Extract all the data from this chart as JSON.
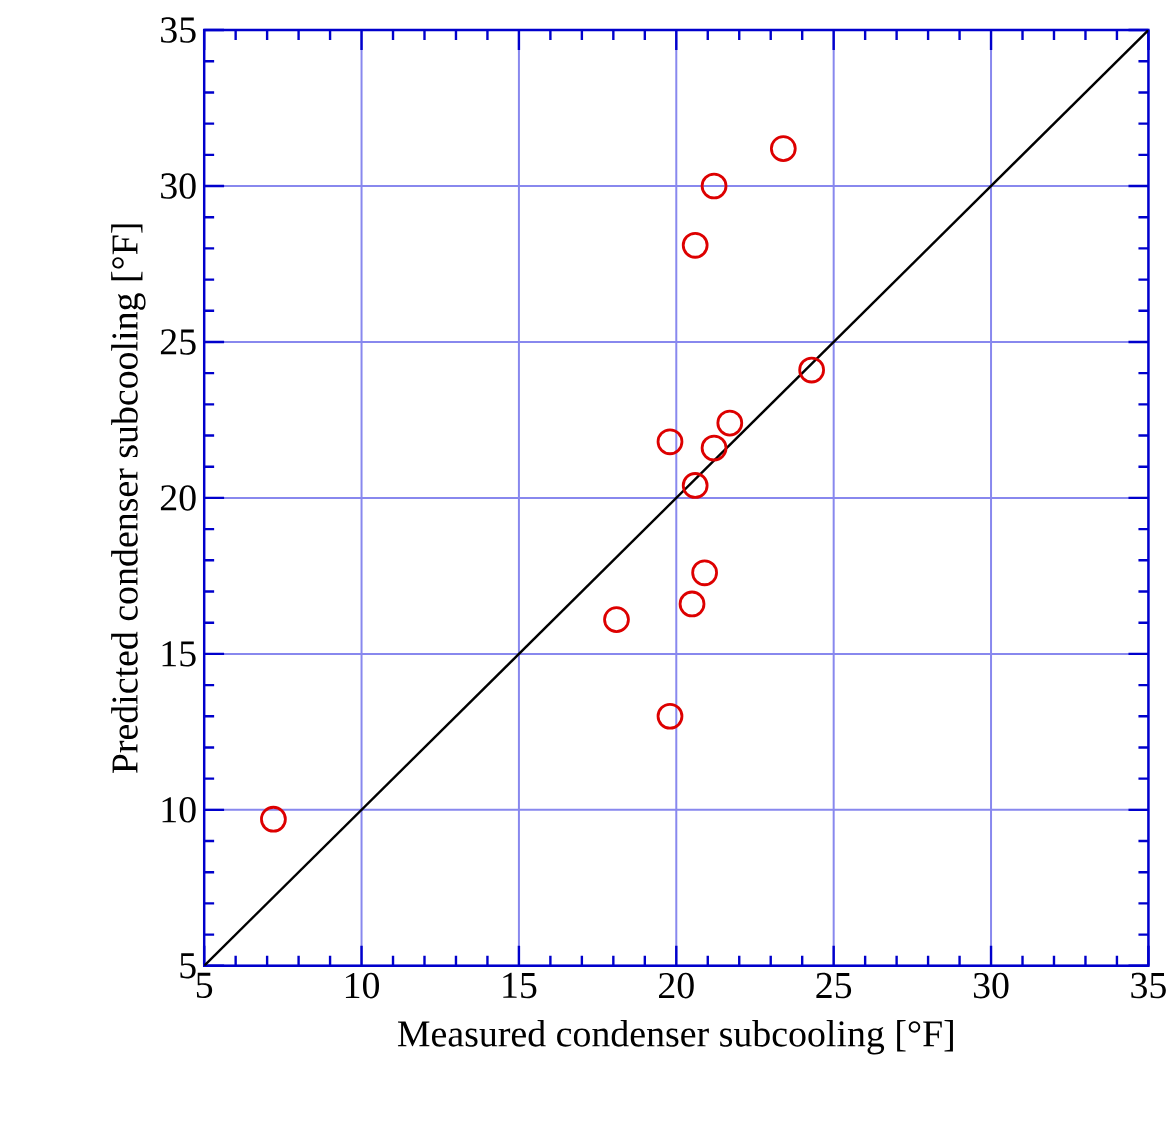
{
  "chart_data": {
    "type": "scatter",
    "xlabel": "Measured condenser subcooling [°F]",
    "ylabel": "Predicted condenser subcooling [°F]",
    "xlim": [
      5,
      35
    ],
    "ylim": [
      5,
      35
    ],
    "xticks": [
      5,
      10,
      15,
      20,
      25,
      30,
      35
    ],
    "yticks": [
      5,
      10,
      15,
      20,
      25,
      30,
      35
    ],
    "grid": true,
    "marker": "circle",
    "series": [
      {
        "color": "#dd0000",
        "x": [
          7.2,
          23.4,
          21.2,
          20.6,
          24.3,
          21.7,
          19.8,
          21.2,
          20.6,
          20.9,
          18.1,
          20.5,
          19.8
        ],
        "values": [
          9.7,
          31.2,
          30.0,
          28.1,
          24.1,
          22.4,
          21.8,
          21.6,
          20.4,
          17.6,
          16.1,
          16.6,
          13.0
        ]
      },
      {
        "type": "line",
        "marker": "none",
        "color": "#000000",
        "x": [
          5,
          35
        ],
        "values": [
          5,
          35
        ]
      }
    ]
  }
}
